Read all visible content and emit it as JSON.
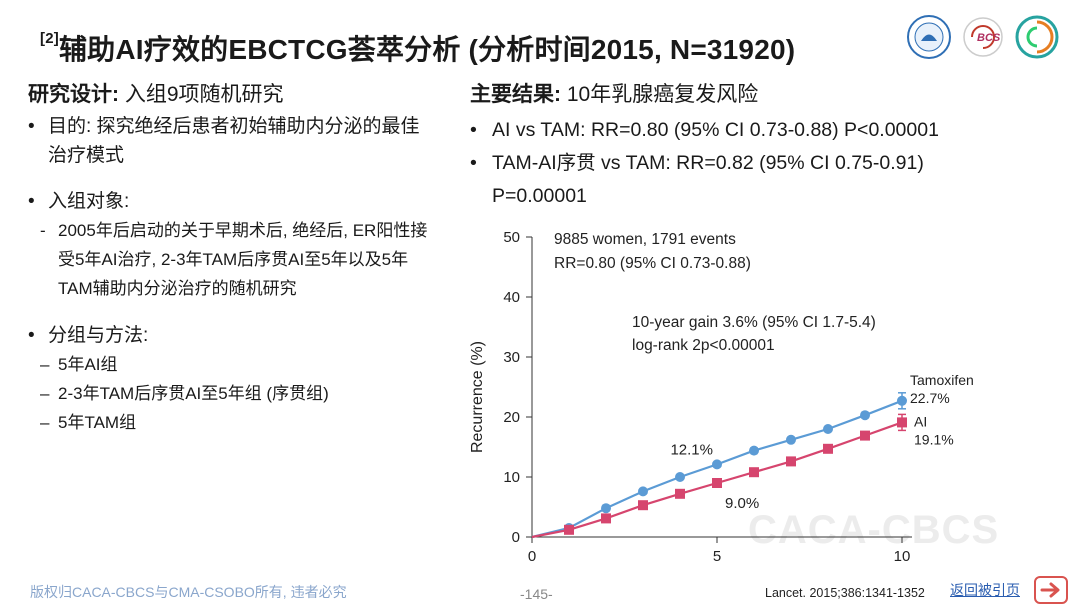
{
  "header": {
    "title_ref": "[2]",
    "title_main": "辅助AI疗效的EBCTCG荟萃分析 (分析时间2015, N=31920)"
  },
  "logos": [
    {
      "icon": "society-seal-icon"
    },
    {
      "icon": "bcs-logo-icon",
      "text": "BCS"
    },
    {
      "icon": "spiral-logo-icon"
    }
  ],
  "left": {
    "heading_bold": "研究设计:",
    "heading_rest": " 入组9项随机研究",
    "bullets": [
      {
        "text": "目的: 探究绝经后患者初始辅助内分泌的最佳治疗模式"
      },
      {
        "text": "入组对象:"
      },
      {
        "text": "分组与方法:"
      }
    ],
    "subjects_sub": "2005年后启动的关于早期术后, 绝经后, ER阳性接受5年AI治疗, 2-3年TAM后序贯AI至5年以及5年TAM辅助内分泌治疗的随机研究",
    "groups": [
      "5年AI组",
      "2-3年TAM后序贯AI至5年组 (序贯组)",
      "5年TAM组"
    ]
  },
  "right": {
    "heading_bold": "主要结果:",
    "heading_rest": " 10年乳腺癌复发风险",
    "results": [
      "AI vs TAM: RR=0.80 (95% CI 0.73-0.88) P<0.00001",
      "TAM-AI序贯 vs TAM: RR=0.82 (95% CI 0.75-0.91) P=0.00001"
    ]
  },
  "chart_data": {
    "type": "line",
    "title": "",
    "xlabel": "",
    "ylabel": "Recurrence (%)",
    "xlim": [
      0,
      10
    ],
    "ylim": [
      0,
      50
    ],
    "x_ticks": [
      0,
      5,
      10
    ],
    "y_ticks": [
      0,
      10,
      20,
      30,
      40,
      50
    ],
    "x": [
      0,
      1,
      2,
      3,
      4,
      5,
      6,
      7,
      8,
      9,
      10
    ],
    "series": [
      {
        "name": "Tamoxifen",
        "color": "#5b9bd5",
        "marker": "circle",
        "values": [
          0,
          1.5,
          4.8,
          7.6,
          10.0,
          12.1,
          14.4,
          16.2,
          18.0,
          20.3,
          22.7
        ],
        "end_label": "Tamoxifen",
        "end_value": "22.7%"
      },
      {
        "name": "AI",
        "color": "#d6456e",
        "marker": "square",
        "values": [
          0,
          1.2,
          3.1,
          5.3,
          7.2,
          9.0,
          10.8,
          12.6,
          14.7,
          16.9,
          19.1
        ],
        "end_label": "AI",
        "end_value": "19.1%"
      }
    ],
    "annotations": {
      "top1": "9885 women, 1791 events",
      "top2": "RR=0.80 (95% CI 0.73-0.88)",
      "gain1": "10-year gain 3.6% (95% CI 1.7-5.4)",
      "gain2": "log-rank 2p<0.00001",
      "tam5": "12.1%",
      "ai5": "9.0%"
    }
  },
  "watermark": "CACA-CBCS",
  "footer": {
    "copyright": "版权归CACA-CBCS与CMA-CSOBO所有, 违者必究",
    "page": "-145-",
    "citation": "Lancet. 2015;386:1341-1352",
    "back_link": "返回被引页"
  }
}
